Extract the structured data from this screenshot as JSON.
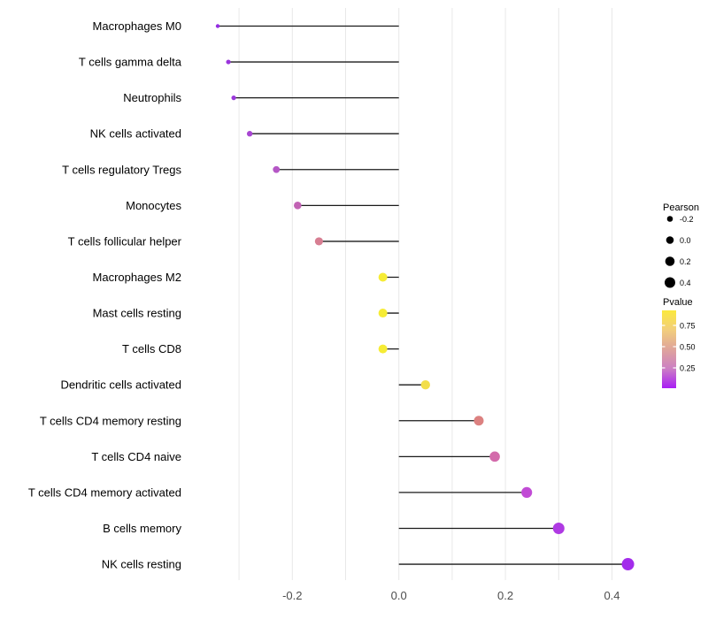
{
  "chart_data": {
    "type": "scatter",
    "subtype": "lollipop",
    "title": "",
    "xlabel": "",
    "ylabel": "",
    "xlim": [
      -0.39,
      0.46
    ],
    "grid": "on",
    "gridlines_x": [
      -0.3,
      -0.2,
      -0.1,
      0.0,
      0.1,
      0.2,
      0.3,
      0.4
    ],
    "x_ticks": [
      -0.2,
      0.0,
      0.2,
      0.4
    ],
    "x_tick_labels": [
      "-0.2",
      "0.0",
      "0.2",
      "0.4"
    ],
    "baseline_x": 0.0,
    "categories": [
      "Macrophages M0",
      "T cells gamma delta",
      "Neutrophils",
      "NK cells activated",
      "T cells regulatory  Tregs",
      "Monocytes",
      "T cells follicular helper",
      "Macrophages M2",
      "Mast cells resting",
      "T cells CD8",
      "Dendritic cells activated",
      "T cells CD4 memory resting",
      "T cells CD4 naive",
      "T cells CD4 memory activated",
      "B cells memory",
      "NK cells resting"
    ],
    "series": [
      {
        "name": "Pearson",
        "values": [
          -0.34,
          -0.32,
          -0.31,
          -0.28,
          -0.23,
          -0.19,
          -0.15,
          -0.03,
          -0.03,
          -0.03,
          0.05,
          0.15,
          0.18,
          0.24,
          0.3,
          0.43
        ]
      }
    ],
    "point_colors": [
      "#942CE2",
      "#9A35DC",
      "#9A38DA",
      "#A846D2",
      "#B557C6",
      "#C263B4",
      "#D77E92",
      "#F6EC35",
      "#F6EC35",
      "#F6EC35",
      "#F2DE4A",
      "#DC8180",
      "#D36BAB",
      "#C14BD5",
      "#AF3AE3",
      "#A32CEB"
    ],
    "point_radii": [
      2.2,
      2.6,
      2.6,
      3.2,
      3.9,
      4.3,
      4.6,
      5.0,
      5.0,
      5.0,
      5.2,
      5.5,
      5.8,
      6.1,
      6.5,
      7.0
    ],
    "stem_color": "#1a1a1a",
    "gridline_color": "#e8e8e8",
    "axis_text_color": "#4d4d4d",
    "label_text_color": "#000000",
    "legend_position": "right",
    "legend": {
      "size_legend": {
        "title": "Pearson",
        "items": [
          {
            "label": "-0.2",
            "radius": 3.3
          },
          {
            "label": "0.0",
            "radius": 4.3
          },
          {
            "label": "0.2",
            "radius": 5.3
          },
          {
            "label": "0.4",
            "radius": 6.0
          }
        ],
        "dot_color": "#000000"
      },
      "color_legend": {
        "title": "Pvalue",
        "tick_labels": [
          "0.75",
          "0.50",
          "0.25"
        ],
        "gradient_stops": [
          "#FBE93D",
          "#F2CE7C",
          "#DFA49B",
          "#CC7FC4",
          "#A91EF5"
        ]
      }
    }
  }
}
